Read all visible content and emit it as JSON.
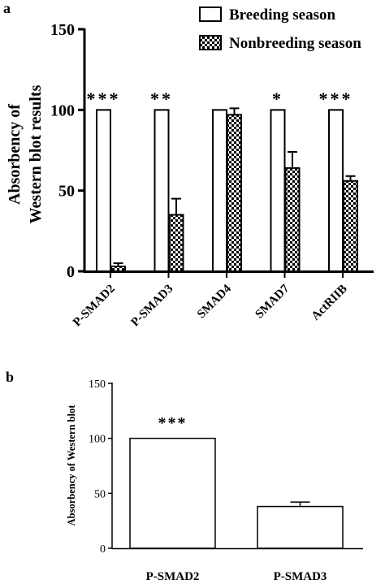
{
  "panel_a": {
    "panel_label": "a",
    "chart_data": {
      "type": "bar",
      "title": "",
      "xlabel": "",
      "ylabel": "Absorbency of\nWestern blot results",
      "ylim": [
        0,
        150
      ],
      "yticks": [
        0,
        50,
        100,
        150
      ],
      "categories": [
        "P-SMAD2",
        "P-SMAD3",
        "SMAD4",
        "SMAD7",
        "ActRIIB"
      ],
      "series": [
        {
          "name": "Breeding season",
          "values": [
            100,
            100,
            100,
            100,
            100
          ],
          "errors": [
            0,
            0,
            0,
            0,
            0
          ],
          "fill": "#ffffff"
        },
        {
          "name": "Nonbreeding season",
          "values": [
            3,
            35,
            97,
            64,
            56
          ],
          "errors": [
            2,
            10,
            4,
            10,
            3
          ],
          "fill": "checkered"
        }
      ],
      "significance": [
        "***",
        "**",
        "",
        "*",
        "***"
      ],
      "legend_position": "top-right",
      "grid": false
    }
  },
  "panel_b": {
    "panel_label": "b",
    "chart_data": {
      "type": "bar",
      "title": "",
      "xlabel": "",
      "ylabel": "Absorbency of Western blot",
      "ylim": [
        0,
        150
      ],
      "yticks": [
        0,
        50,
        100,
        150
      ],
      "categories": [
        "P-SMAD2",
        "P-SMAD3"
      ],
      "values": [
        100,
        38
      ],
      "errors": [
        0,
        4
      ],
      "significance": [
        "***",
        ""
      ],
      "grid": false
    }
  }
}
